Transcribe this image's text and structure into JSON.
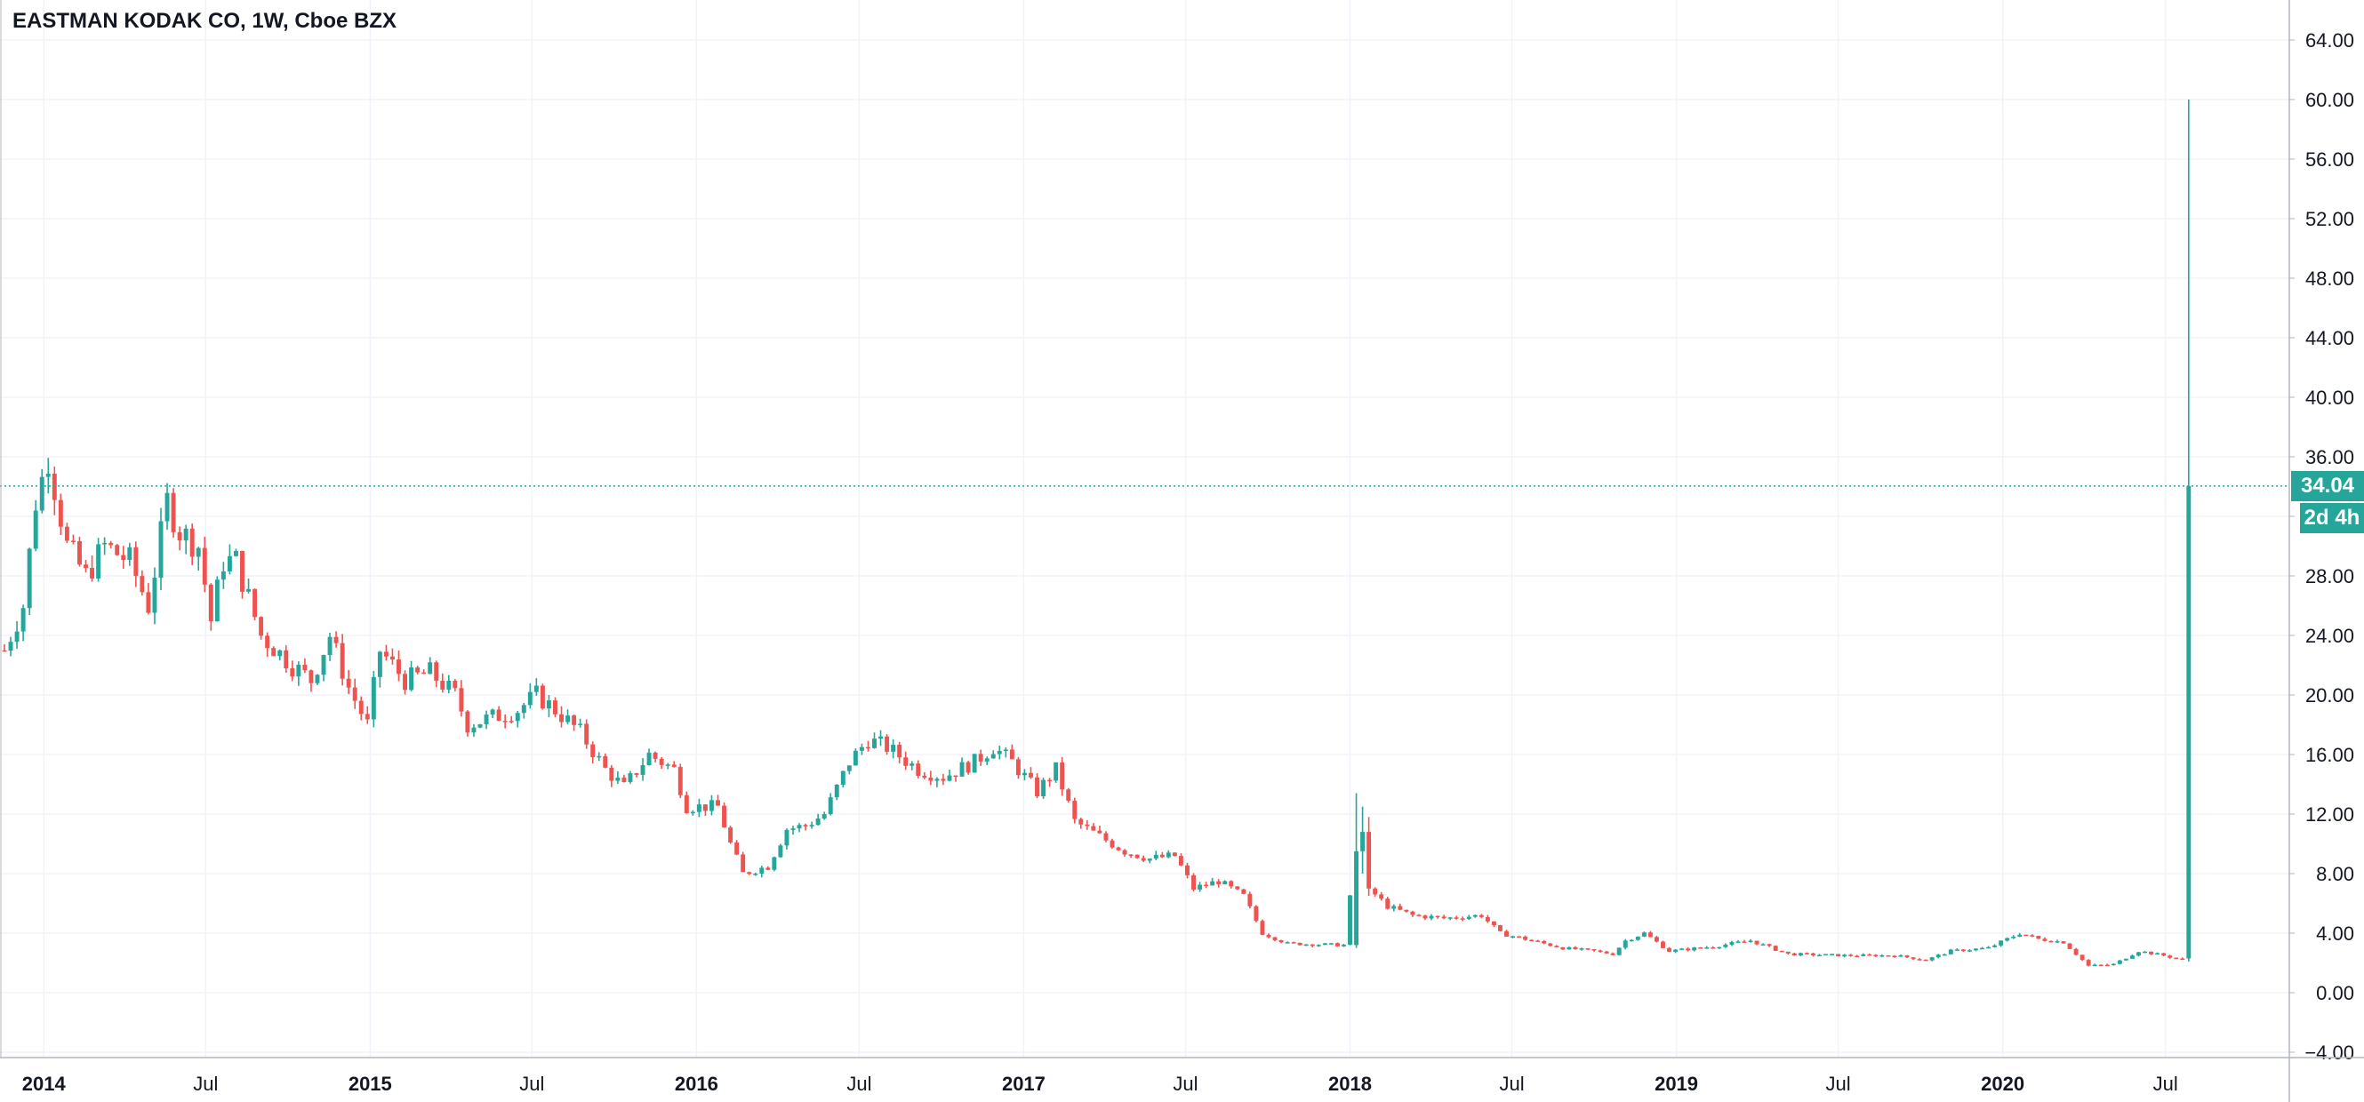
{
  "header": {
    "title": "EASTMAN KODAK CO, 1W, Cboe BZX"
  },
  "colors": {
    "up": "#26a69a",
    "down": "#ef5350",
    "grid": "#f0f3fa",
    "axis_line": "#b2b5be",
    "axis_text": "#131722",
    "price_line": "#26a69a"
  },
  "last_price": {
    "value": 34.04,
    "label": "34.04",
    "countdown": "2d 4h"
  },
  "chart_data": {
    "type": "candlestick",
    "title": "EASTMAN KODAK CO, 1W, Cboe BZX",
    "interval": "1W",
    "x_range": [
      "2013-11-18",
      "2020-08-31"
    ],
    "ylim": [
      -4,
      66
    ],
    "y_ticks": [
      -4,
      0,
      4,
      8,
      12,
      16,
      20,
      24,
      28,
      32,
      36,
      40,
      44,
      48,
      52,
      56,
      60,
      64
    ],
    "y_tick_labels": [
      "−4.00",
      "0.00",
      "4.00",
      "8.00",
      "12.00",
      "16.00",
      "20.00",
      "24.00",
      "28.00",
      "32.00",
      "36.00",
      "40.00",
      "44.00",
      "48.00",
      "52.00",
      "56.00",
      "60.00",
      "64.00"
    ],
    "x_ticks": [
      {
        "date": "2014-01-01",
        "label": "2014",
        "bold": true
      },
      {
        "date": "2014-07-01",
        "label": "Jul",
        "bold": false
      },
      {
        "date": "2015-01-01",
        "label": "2015",
        "bold": true
      },
      {
        "date": "2015-07-01",
        "label": "Jul",
        "bold": false
      },
      {
        "date": "2016-01-01",
        "label": "2016",
        "bold": true
      },
      {
        "date": "2016-07-01",
        "label": "Jul",
        "bold": false
      },
      {
        "date": "2017-01-01",
        "label": "2017",
        "bold": true
      },
      {
        "date": "2017-07-01",
        "label": "Jul",
        "bold": false
      },
      {
        "date": "2018-01-01",
        "label": "2018",
        "bold": true
      },
      {
        "date": "2018-07-01",
        "label": "Jul",
        "bold": false
      },
      {
        "date": "2019-01-01",
        "label": "2019",
        "bold": true
      },
      {
        "date": "2019-07-01",
        "label": "Jul",
        "bold": false
      },
      {
        "date": "2020-01-01",
        "label": "2020",
        "bold": true
      },
      {
        "date": "2020-07-01",
        "label": "Jul",
        "bold": false
      }
    ],
    "grid": true,
    "close_anchors": [
      [
        "2013-11-18",
        23
      ],
      [
        "2013-12-09",
        26
      ],
      [
        "2013-12-23",
        33
      ],
      [
        "2014-01-06",
        36
      ],
      [
        "2014-01-27",
        30
      ],
      [
        "2014-02-17",
        28
      ],
      [
        "2014-03-10",
        30
      ],
      [
        "2014-04-07",
        29
      ],
      [
        "2014-04-28",
        26
      ],
      [
        "2014-05-19",
        33
      ],
      [
        "2014-06-02",
        31
      ],
      [
        "2014-06-23",
        30
      ],
      [
        "2014-07-07",
        25
      ],
      [
        "2014-07-21",
        29
      ],
      [
        "2014-08-04",
        29
      ],
      [
        "2014-09-01",
        24
      ],
      [
        "2014-10-06",
        22
      ],
      [
        "2014-10-27",
        21
      ],
      [
        "2014-11-17",
        24
      ],
      [
        "2014-12-08",
        20.5
      ],
      [
        "2014-12-29",
        18
      ],
      [
        "2015-01-12",
        23
      ],
      [
        "2015-02-09",
        21
      ],
      [
        "2015-03-09",
        21.5
      ],
      [
        "2015-04-06",
        20
      ],
      [
        "2015-04-20",
        18
      ],
      [
        "2015-05-18",
        18.5
      ],
      [
        "2015-06-15",
        19
      ],
      [
        "2015-07-06",
        20
      ],
      [
        "2015-07-27",
        19
      ],
      [
        "2015-08-24",
        17.5
      ],
      [
        "2015-09-21",
        15
      ],
      [
        "2015-10-12",
        13.8
      ],
      [
        "2015-11-09",
        16
      ],
      [
        "2015-12-07",
        15
      ],
      [
        "2015-12-21",
        12.5
      ],
      [
        "2016-01-25",
        12.5
      ],
      [
        "2016-02-08",
        10
      ],
      [
        "2016-02-22",
        8
      ],
      [
        "2016-03-21",
        8.5
      ],
      [
        "2016-04-11",
        11
      ],
      [
        "2016-05-02",
        11.2
      ],
      [
        "2016-05-23",
        12
      ],
      [
        "2016-06-20",
        15.5
      ],
      [
        "2016-07-11",
        17
      ],
      [
        "2016-08-01",
        16.5
      ],
      [
        "2016-09-05",
        15
      ],
      [
        "2016-10-03",
        14.5
      ],
      [
        "2016-11-07",
        15.5
      ],
      [
        "2016-11-28",
        16.5
      ],
      [
        "2016-12-19",
        15.5
      ],
      [
        "2017-01-16",
        13.5
      ],
      [
        "2017-02-06",
        15
      ],
      [
        "2017-02-27",
        11.5
      ],
      [
        "2017-03-27",
        10.5
      ],
      [
        "2017-04-24",
        9.5
      ],
      [
        "2017-05-22",
        9
      ],
      [
        "2017-06-19",
        9.2
      ],
      [
        "2017-07-10",
        7
      ],
      [
        "2017-08-07",
        7.5
      ],
      [
        "2017-09-04",
        6.5
      ],
      [
        "2017-09-25",
        4
      ],
      [
        "2017-10-23",
        3.3
      ],
      [
        "2017-12-25",
        3.2
      ],
      [
        "2018-01-08",
        9.5
      ],
      [
        "2018-01-22",
        7
      ],
      [
        "2018-02-12",
        5.8
      ],
      [
        "2018-03-12",
        5.2
      ],
      [
        "2018-04-16",
        5
      ],
      [
        "2018-05-28",
        5.2
      ],
      [
        "2018-06-18",
        4
      ],
      [
        "2018-07-23",
        3.5
      ],
      [
        "2018-08-27",
        3
      ],
      [
        "2018-10-01",
        2.8
      ],
      [
        "2018-10-22",
        2.6
      ],
      [
        "2018-11-05",
        3.5
      ],
      [
        "2018-11-26",
        4
      ],
      [
        "2018-12-24",
        2.8
      ],
      [
        "2019-02-11",
        3.1
      ],
      [
        "2019-03-25",
        3.5
      ],
      [
        "2019-05-06",
        2.6
      ],
      [
        "2019-07-08",
        2.5
      ],
      [
        "2019-09-02",
        2.5
      ],
      [
        "2019-10-07",
        2.2
      ],
      [
        "2019-11-04",
        2.8
      ],
      [
        "2019-12-16",
        3
      ],
      [
        "2020-01-20",
        4
      ],
      [
        "2020-02-10",
        3.6
      ],
      [
        "2020-03-09",
        3.4
      ],
      [
        "2020-04-06",
        1.8
      ],
      [
        "2020-05-04",
        1.9
      ],
      [
        "2020-06-01",
        2.8
      ],
      [
        "2020-06-29",
        2.5
      ],
      [
        "2020-07-20",
        2.2
      ],
      [
        "2020-07-27",
        34.04
      ]
    ],
    "special_candles": [
      {
        "date": "2018-01-08",
        "open": 3.2,
        "high": 13.4,
        "low": 3.0,
        "close": 9.5
      },
      {
        "date": "2018-01-15",
        "open": 9.5,
        "high": 12.5,
        "low": 8.0,
        "close": 10.8
      },
      {
        "date": "2018-01-22",
        "open": 10.8,
        "high": 11.8,
        "low": 6.5,
        "close": 7.0
      },
      {
        "date": "2020-07-27",
        "open": 2.3,
        "high": 60.0,
        "low": 2.1,
        "close": 34.04
      }
    ]
  }
}
